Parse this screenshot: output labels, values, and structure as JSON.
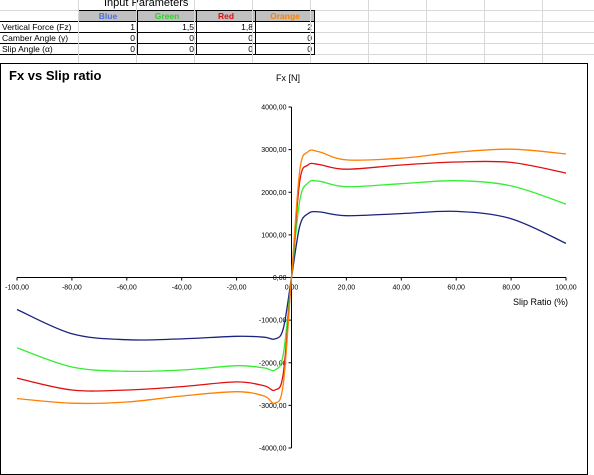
{
  "params": {
    "title": "Input Parameters",
    "columns": [
      {
        "label": "Blue",
        "color": "#4a6fd8"
      },
      {
        "label": "Green",
        "color": "#33cc33"
      },
      {
        "label": "Red",
        "color": "#e01010"
      },
      {
        "label": "Orange",
        "color": "#ff8000"
      }
    ],
    "rows": [
      {
        "label": "Vertical Force (Fz)",
        "values": [
          "1",
          "1,5",
          "1,8",
          "2"
        ]
      },
      {
        "label": "Camber Angle (γ)",
        "values": [
          "0",
          "0",
          "0",
          "0"
        ]
      },
      {
        "label": "Slip Angle (α)",
        "values": [
          "0",
          "0",
          "0",
          "0"
        ]
      }
    ]
  },
  "chart_data": {
    "type": "line",
    "title": "Fx vs Slip ratio",
    "xlabel": "Slip Ratio (%)",
    "ylabel": "Fx [N]",
    "xlim": [
      -100,
      100
    ],
    "ylim": [
      -4000,
      4000
    ],
    "x_ticks": [
      "-100,00",
      "-80,00",
      "-60,00",
      "-40,00",
      "-20,00",
      "0,00",
      "20,00",
      "40,00",
      "60,00",
      "80,00",
      "100,00"
    ],
    "y_ticks": [
      "4000,00",
      "3000,00",
      "2000,00",
      "1000,00",
      "0,00",
      "-1000,00",
      "-2000,00",
      "-3000,00",
      "-4000,00"
    ],
    "x": [
      -100,
      -80,
      -60,
      -40,
      -20,
      -10,
      -6,
      -3,
      0,
      3,
      6,
      10,
      20,
      40,
      60,
      80,
      100
    ],
    "series": [
      {
        "color": "#1a237e",
        "values": [
          -750,
          -1320,
          -1460,
          -1440,
          -1380,
          -1400,
          -1440,
          -1200,
          0,
          1200,
          1500,
          1540,
          1450,
          1500,
          1550,
          1380,
          800
        ]
      },
      {
        "color": "#33ee33",
        "values": [
          -1650,
          -2100,
          -2200,
          -2170,
          -2070,
          -2120,
          -2170,
          -1800,
          0,
          1800,
          2220,
          2260,
          2130,
          2200,
          2270,
          2150,
          1720
        ]
      },
      {
        "color": "#e01010",
        "values": [
          -2360,
          -2640,
          -2640,
          -2560,
          -2450,
          -2540,
          -2640,
          -2250,
          0,
          2250,
          2640,
          2650,
          2540,
          2640,
          2710,
          2700,
          2450
        ]
      },
      {
        "color": "#ff7f00",
        "values": [
          -2840,
          -2950,
          -2920,
          -2780,
          -2680,
          -2780,
          -2950,
          -2500,
          0,
          2500,
          2950,
          2950,
          2760,
          2800,
          2940,
          3010,
          2900
        ]
      }
    ]
  }
}
